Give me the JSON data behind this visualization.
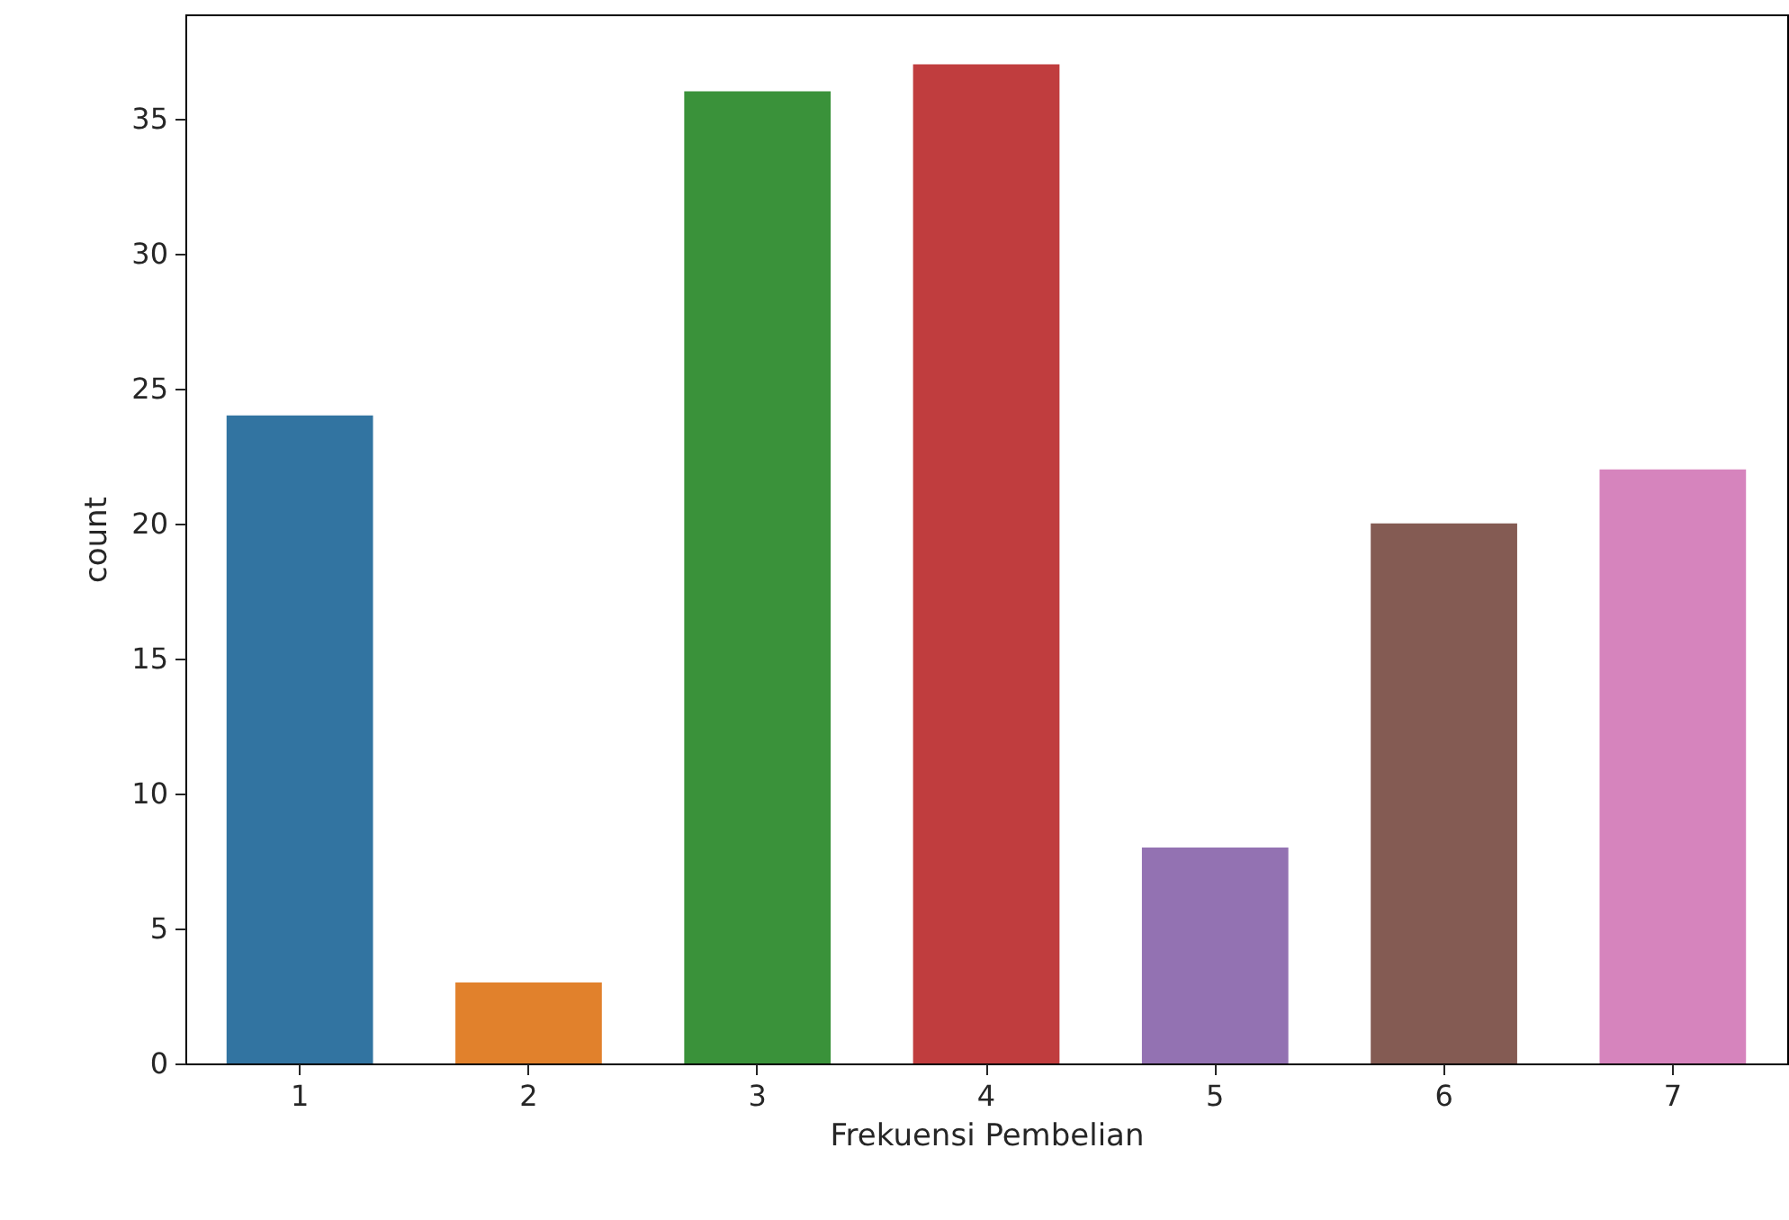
{
  "chart_data": {
    "type": "bar",
    "xlabel": "Frekuensi Pembelian",
    "ylabel": "count",
    "categories": [
      "1",
      "2",
      "3",
      "4",
      "5",
      "6",
      "7"
    ],
    "values": [
      24,
      3,
      36,
      37,
      8,
      20,
      22
    ],
    "colors": [
      "#3274a1",
      "#e1812c",
      "#3a923a",
      "#c03d3e",
      "#9372b2",
      "#845b53",
      "#d684bd"
    ],
    "ylim": [
      0,
      38.85
    ],
    "yticks": [
      0,
      5,
      10,
      15,
      20,
      25,
      30,
      35
    ],
    "grid": false
  }
}
